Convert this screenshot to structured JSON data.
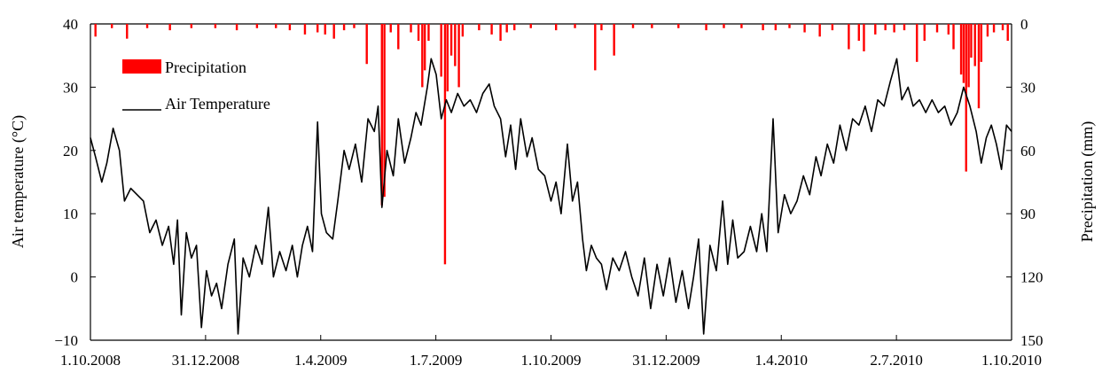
{
  "chart_data": {
    "type": "line",
    "title": "",
    "ylabel": "Air temperature (°C)",
    "y2label": "Precipitation (mm)",
    "x_range": [
      "1.10.2008",
      "1.10.2010"
    ],
    "ylim": [
      -10,
      40
    ],
    "y2lim": [
      150,
      0
    ],
    "y2_inverted": true,
    "grid": false,
    "legend_placement": "top-left",
    "x_tick_labels": [
      "1.10.2008",
      "31.12.2008",
      "1.4.2009",
      "1.7.2009",
      "1.10.2009",
      "31.12.2009",
      "1.4.2010",
      "2.7.2010",
      "1.10.2010"
    ],
    "y_tick_labels": [
      "−10",
      "0",
      "10",
      "20",
      "30",
      "40"
    ],
    "y2_tick_labels": [
      "150",
      "120",
      "90",
      "60",
      "30",
      "0"
    ],
    "series": [
      {
        "name": "Air Temperature",
        "color": "#000000",
        "points": [
          [
            "2008-10-01",
            22
          ],
          [
            "2008-10-05",
            19
          ],
          [
            "2008-10-10",
            15
          ],
          [
            "2008-10-14",
            18
          ],
          [
            "2008-10-19",
            23.5
          ],
          [
            "2008-10-24",
            20
          ],
          [
            "2008-10-28",
            12
          ],
          [
            "2008-11-02",
            14
          ],
          [
            "2008-11-07",
            13
          ],
          [
            "2008-11-12",
            12
          ],
          [
            "2008-11-17",
            7
          ],
          [
            "2008-11-22",
            9
          ],
          [
            "2008-11-27",
            5
          ],
          [
            "2008-12-02",
            8
          ],
          [
            "2008-12-06",
            2
          ],
          [
            "2008-12-09",
            9
          ],
          [
            "2008-12-12",
            -6
          ],
          [
            "2008-12-16",
            7
          ],
          [
            "2008-12-20",
            3
          ],
          [
            "2008-12-24",
            5
          ],
          [
            "2008-12-28",
            -8
          ],
          [
            "2009-01-01",
            1
          ],
          [
            "2009-01-05",
            -3
          ],
          [
            "2009-01-09",
            -1
          ],
          [
            "2009-01-13",
            -5
          ],
          [
            "2009-01-18",
            2
          ],
          [
            "2009-01-23",
            6
          ],
          [
            "2009-01-26",
            -9
          ],
          [
            "2009-01-30",
            3
          ],
          [
            "2009-02-04",
            0
          ],
          [
            "2009-02-09",
            5
          ],
          [
            "2009-02-14",
            2
          ],
          [
            "2009-02-19",
            11
          ],
          [
            "2009-02-23",
            0
          ],
          [
            "2009-02-28",
            4
          ],
          [
            "2009-03-05",
            1
          ],
          [
            "2009-03-10",
            5
          ],
          [
            "2009-03-14",
            0
          ],
          [
            "2009-03-18",
            5
          ],
          [
            "2009-03-22",
            8
          ],
          [
            "2009-03-26",
            4
          ],
          [
            "2009-03-30",
            24.5
          ],
          [
            "2009-04-02",
            10
          ],
          [
            "2009-04-06",
            7
          ],
          [
            "2009-04-11",
            6
          ],
          [
            "2009-04-15",
            12
          ],
          [
            "2009-04-20",
            20
          ],
          [
            "2009-04-24",
            17
          ],
          [
            "2009-04-29",
            21
          ],
          [
            "2009-05-04",
            15
          ],
          [
            "2009-05-09",
            25
          ],
          [
            "2009-05-14",
            23
          ],
          [
            "2009-05-17",
            27
          ],
          [
            "2009-05-20",
            11
          ],
          [
            "2009-05-24",
            20
          ],
          [
            "2009-05-29",
            16
          ],
          [
            "2009-06-02",
            25
          ],
          [
            "2009-06-07",
            18
          ],
          [
            "2009-06-12",
            22
          ],
          [
            "2009-06-16",
            26
          ],
          [
            "2009-06-20",
            24
          ],
          [
            "2009-06-25",
            30
          ],
          [
            "2009-06-28",
            34.5
          ],
          [
            "2009-07-02",
            32
          ],
          [
            "2009-07-06",
            25
          ],
          [
            "2009-07-10",
            28
          ],
          [
            "2009-07-14",
            26
          ],
          [
            "2009-07-19",
            29
          ],
          [
            "2009-07-24",
            27
          ],
          [
            "2009-07-29",
            28
          ],
          [
            "2009-08-03",
            26
          ],
          [
            "2009-08-08",
            29
          ],
          [
            "2009-08-13",
            30.5
          ],
          [
            "2009-08-17",
            27
          ],
          [
            "2009-08-22",
            25
          ],
          [
            "2009-08-26",
            19
          ],
          [
            "2009-08-30",
            24
          ],
          [
            "2009-09-03",
            17
          ],
          [
            "2009-09-07",
            25
          ],
          [
            "2009-09-12",
            19
          ],
          [
            "2009-09-16",
            22
          ],
          [
            "2009-09-21",
            17
          ],
          [
            "2009-09-26",
            16
          ],
          [
            "2009-10-01",
            12
          ],
          [
            "2009-10-05",
            15
          ],
          [
            "2009-10-09",
            10
          ],
          [
            "2009-10-14",
            21
          ],
          [
            "2009-10-18",
            12
          ],
          [
            "2009-10-22",
            15
          ],
          [
            "2009-10-26",
            6
          ],
          [
            "2009-10-29",
            1
          ],
          [
            "2009-11-02",
            5
          ],
          [
            "2009-11-06",
            3
          ],
          [
            "2009-11-10",
            2
          ],
          [
            "2009-11-14",
            -2
          ],
          [
            "2009-11-19",
            3
          ],
          [
            "2009-11-24",
            1
          ],
          [
            "2009-11-29",
            4
          ],
          [
            "2009-12-04",
            0
          ],
          [
            "2009-12-09",
            -3
          ],
          [
            "2009-12-14",
            3
          ],
          [
            "2009-12-19",
            -5
          ],
          [
            "2009-12-24",
            2
          ],
          [
            "2009-12-29",
            -3
          ],
          [
            "2010-01-03",
            3
          ],
          [
            "2010-01-08",
            -4
          ],
          [
            "2010-01-13",
            1
          ],
          [
            "2010-01-18",
            -5
          ],
          [
            "2010-01-22",
            0
          ],
          [
            "2010-01-26",
            6
          ],
          [
            "2010-01-30",
            -9
          ],
          [
            "2010-02-04",
            5
          ],
          [
            "2010-02-09",
            1
          ],
          [
            "2010-02-14",
            12
          ],
          [
            "2010-02-18",
            2
          ],
          [
            "2010-02-22",
            9
          ],
          [
            "2010-02-26",
            3
          ],
          [
            "2010-03-03",
            4
          ],
          [
            "2010-03-08",
            8
          ],
          [
            "2010-03-13",
            4
          ],
          [
            "2010-03-17",
            10
          ],
          [
            "2010-03-21",
            4
          ],
          [
            "2010-03-26",
            25
          ],
          [
            "2010-03-30",
            7
          ],
          [
            "2010-04-04",
            13
          ],
          [
            "2010-04-09",
            10
          ],
          [
            "2010-04-14",
            12
          ],
          [
            "2010-04-19",
            16
          ],
          [
            "2010-04-24",
            13
          ],
          [
            "2010-04-29",
            19
          ],
          [
            "2010-05-03",
            16
          ],
          [
            "2010-05-08",
            21
          ],
          [
            "2010-05-13",
            18
          ],
          [
            "2010-05-18",
            24
          ],
          [
            "2010-05-23",
            20
          ],
          [
            "2010-05-28",
            25
          ],
          [
            "2010-06-02",
            24
          ],
          [
            "2010-06-07",
            27
          ],
          [
            "2010-06-12",
            23
          ],
          [
            "2010-06-17",
            28
          ],
          [
            "2010-06-22",
            27
          ],
          [
            "2010-06-27",
            31
          ],
          [
            "2010-07-02",
            34.5
          ],
          [
            "2010-07-06",
            28
          ],
          [
            "2010-07-11",
            30
          ],
          [
            "2010-07-15",
            27
          ],
          [
            "2010-07-20",
            28
          ],
          [
            "2010-07-25",
            26
          ],
          [
            "2010-07-30",
            28
          ],
          [
            "2010-08-04",
            26
          ],
          [
            "2010-08-09",
            27
          ],
          [
            "2010-08-14",
            24
          ],
          [
            "2010-08-19",
            26
          ],
          [
            "2010-08-24",
            30
          ],
          [
            "2010-08-29",
            27
          ],
          [
            "2010-09-03",
            23
          ],
          [
            "2010-09-07",
            18
          ],
          [
            "2010-09-11",
            22
          ],
          [
            "2010-09-15",
            24
          ],
          [
            "2010-09-19",
            21
          ],
          [
            "2010-09-23",
            17
          ],
          [
            "2010-09-27",
            24
          ],
          [
            "2010-10-01",
            23
          ]
        ]
      },
      {
        "name": "Precipitation",
        "color": "#ff0000",
        "bars": [
          [
            "2008-10-05",
            6
          ],
          [
            "2008-10-18",
            2
          ],
          [
            "2008-10-30",
            7
          ],
          [
            "2008-11-15",
            2
          ],
          [
            "2008-12-03",
            3
          ],
          [
            "2008-12-20",
            2
          ],
          [
            "2009-01-08",
            2
          ],
          [
            "2009-01-25",
            3
          ],
          [
            "2009-02-10",
            2
          ],
          [
            "2009-02-25",
            2
          ],
          [
            "2009-03-08",
            3
          ],
          [
            "2009-03-20",
            5
          ],
          [
            "2009-03-30",
            4
          ],
          [
            "2009-04-05",
            5
          ],
          [
            "2009-04-12",
            7
          ],
          [
            "2009-04-20",
            3
          ],
          [
            "2009-04-28",
            2
          ],
          [
            "2009-05-08",
            19
          ],
          [
            "2009-05-20",
            86
          ],
          [
            "2009-05-22",
            82
          ],
          [
            "2009-05-27",
            4
          ],
          [
            "2009-06-02",
            12
          ],
          [
            "2009-06-12",
            4
          ],
          [
            "2009-06-18",
            8
          ],
          [
            "2009-06-21",
            30
          ],
          [
            "2009-06-23",
            22
          ],
          [
            "2009-06-26",
            8
          ],
          [
            "2009-07-06",
            25
          ],
          [
            "2009-07-09",
            114
          ],
          [
            "2009-07-11",
            32
          ],
          [
            "2009-07-14",
            15
          ],
          [
            "2009-07-17",
            20
          ],
          [
            "2009-07-20",
            30
          ],
          [
            "2009-07-23",
            6
          ],
          [
            "2009-08-05",
            3
          ],
          [
            "2009-08-15",
            5
          ],
          [
            "2009-08-22",
            8
          ],
          [
            "2009-08-27",
            4
          ],
          [
            "2009-09-02",
            3
          ],
          [
            "2009-09-15",
            2
          ],
          [
            "2009-10-05",
            3
          ],
          [
            "2009-10-20",
            2
          ],
          [
            "2009-11-05",
            22
          ],
          [
            "2009-11-10",
            3
          ],
          [
            "2009-11-20",
            15
          ],
          [
            "2009-12-05",
            2
          ],
          [
            "2009-12-20",
            2
          ],
          [
            "2010-01-10",
            2
          ],
          [
            "2010-02-01",
            3
          ],
          [
            "2010-02-15",
            2
          ],
          [
            "2010-03-01",
            2
          ],
          [
            "2010-03-18",
            3
          ],
          [
            "2010-03-28",
            3
          ],
          [
            "2010-04-08",
            2
          ],
          [
            "2010-04-20",
            4
          ],
          [
            "2010-05-02",
            6
          ],
          [
            "2010-05-12",
            3
          ],
          [
            "2010-05-25",
            12
          ],
          [
            "2010-06-02",
            8
          ],
          [
            "2010-06-06",
            13
          ],
          [
            "2010-06-15",
            5
          ],
          [
            "2010-06-23",
            3
          ],
          [
            "2010-06-30",
            4
          ],
          [
            "2010-07-08",
            3
          ],
          [
            "2010-07-18",
            18
          ],
          [
            "2010-07-24",
            8
          ],
          [
            "2010-08-03",
            4
          ],
          [
            "2010-08-12",
            5
          ],
          [
            "2010-08-16",
            12
          ],
          [
            "2010-08-22",
            24
          ],
          [
            "2010-08-24",
            28
          ],
          [
            "2010-08-26",
            70
          ],
          [
            "2010-08-28",
            30
          ],
          [
            "2010-08-30",
            16
          ],
          [
            "2010-09-02",
            20
          ],
          [
            "2010-09-05",
            40
          ],
          [
            "2010-09-07",
            18
          ],
          [
            "2010-09-12",
            6
          ],
          [
            "2010-09-17",
            4
          ],
          [
            "2010-09-24",
            3
          ],
          [
            "2010-09-28",
            8
          ]
        ]
      }
    ]
  }
}
